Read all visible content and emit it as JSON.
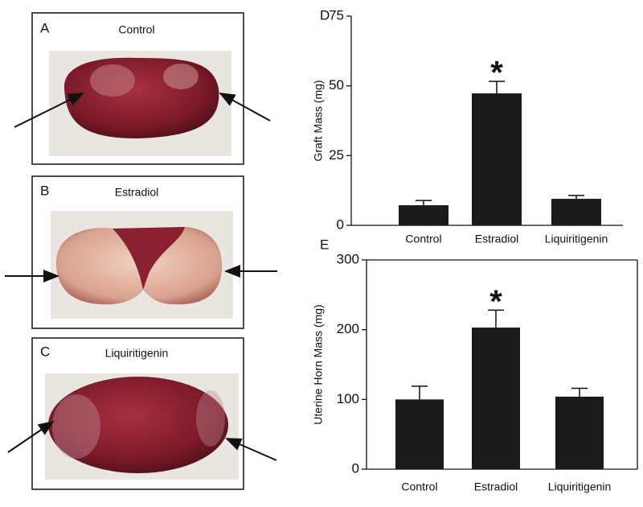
{
  "panels": [
    {
      "letter": "A",
      "label": "Control"
    },
    {
      "letter": "B",
      "label": "Estradiol"
    },
    {
      "letter": "C",
      "label": "Liquiritigenin"
    }
  ],
  "chart_data": [
    {
      "type": "bar",
      "label": "D",
      "ylabel": "Graft Mass (mg)",
      "categories": [
        "Control",
        "Estradiol",
        "Liquiritigenin"
      ],
      "values": [
        7.2,
        47.3,
        9.5
      ],
      "errors": [
        1.7,
        4.3,
        1.2
      ],
      "color": "#1a1a1a",
      "ylim": [
        0,
        75
      ],
      "yticks": [
        0,
        25,
        50,
        75
      ],
      "frame": false,
      "annotations": [
        {
          "text": "*",
          "category": "Estradiol"
        }
      ]
    },
    {
      "type": "bar",
      "label": "E",
      "ylabel": "Uterine Horn Mass (mg)",
      "categories": [
        "Control",
        "Estradiol",
        "Liquiritigenin"
      ],
      "values": [
        100,
        203,
        104
      ],
      "errors": [
        19,
        25,
        12
      ],
      "color": "#1a1a1a",
      "ylim": [
        0,
        300
      ],
      "yticks": [
        0,
        100,
        200,
        300
      ],
      "frame": true,
      "annotations": [
        {
          "text": "*",
          "category": "Estradiol"
        }
      ]
    }
  ]
}
